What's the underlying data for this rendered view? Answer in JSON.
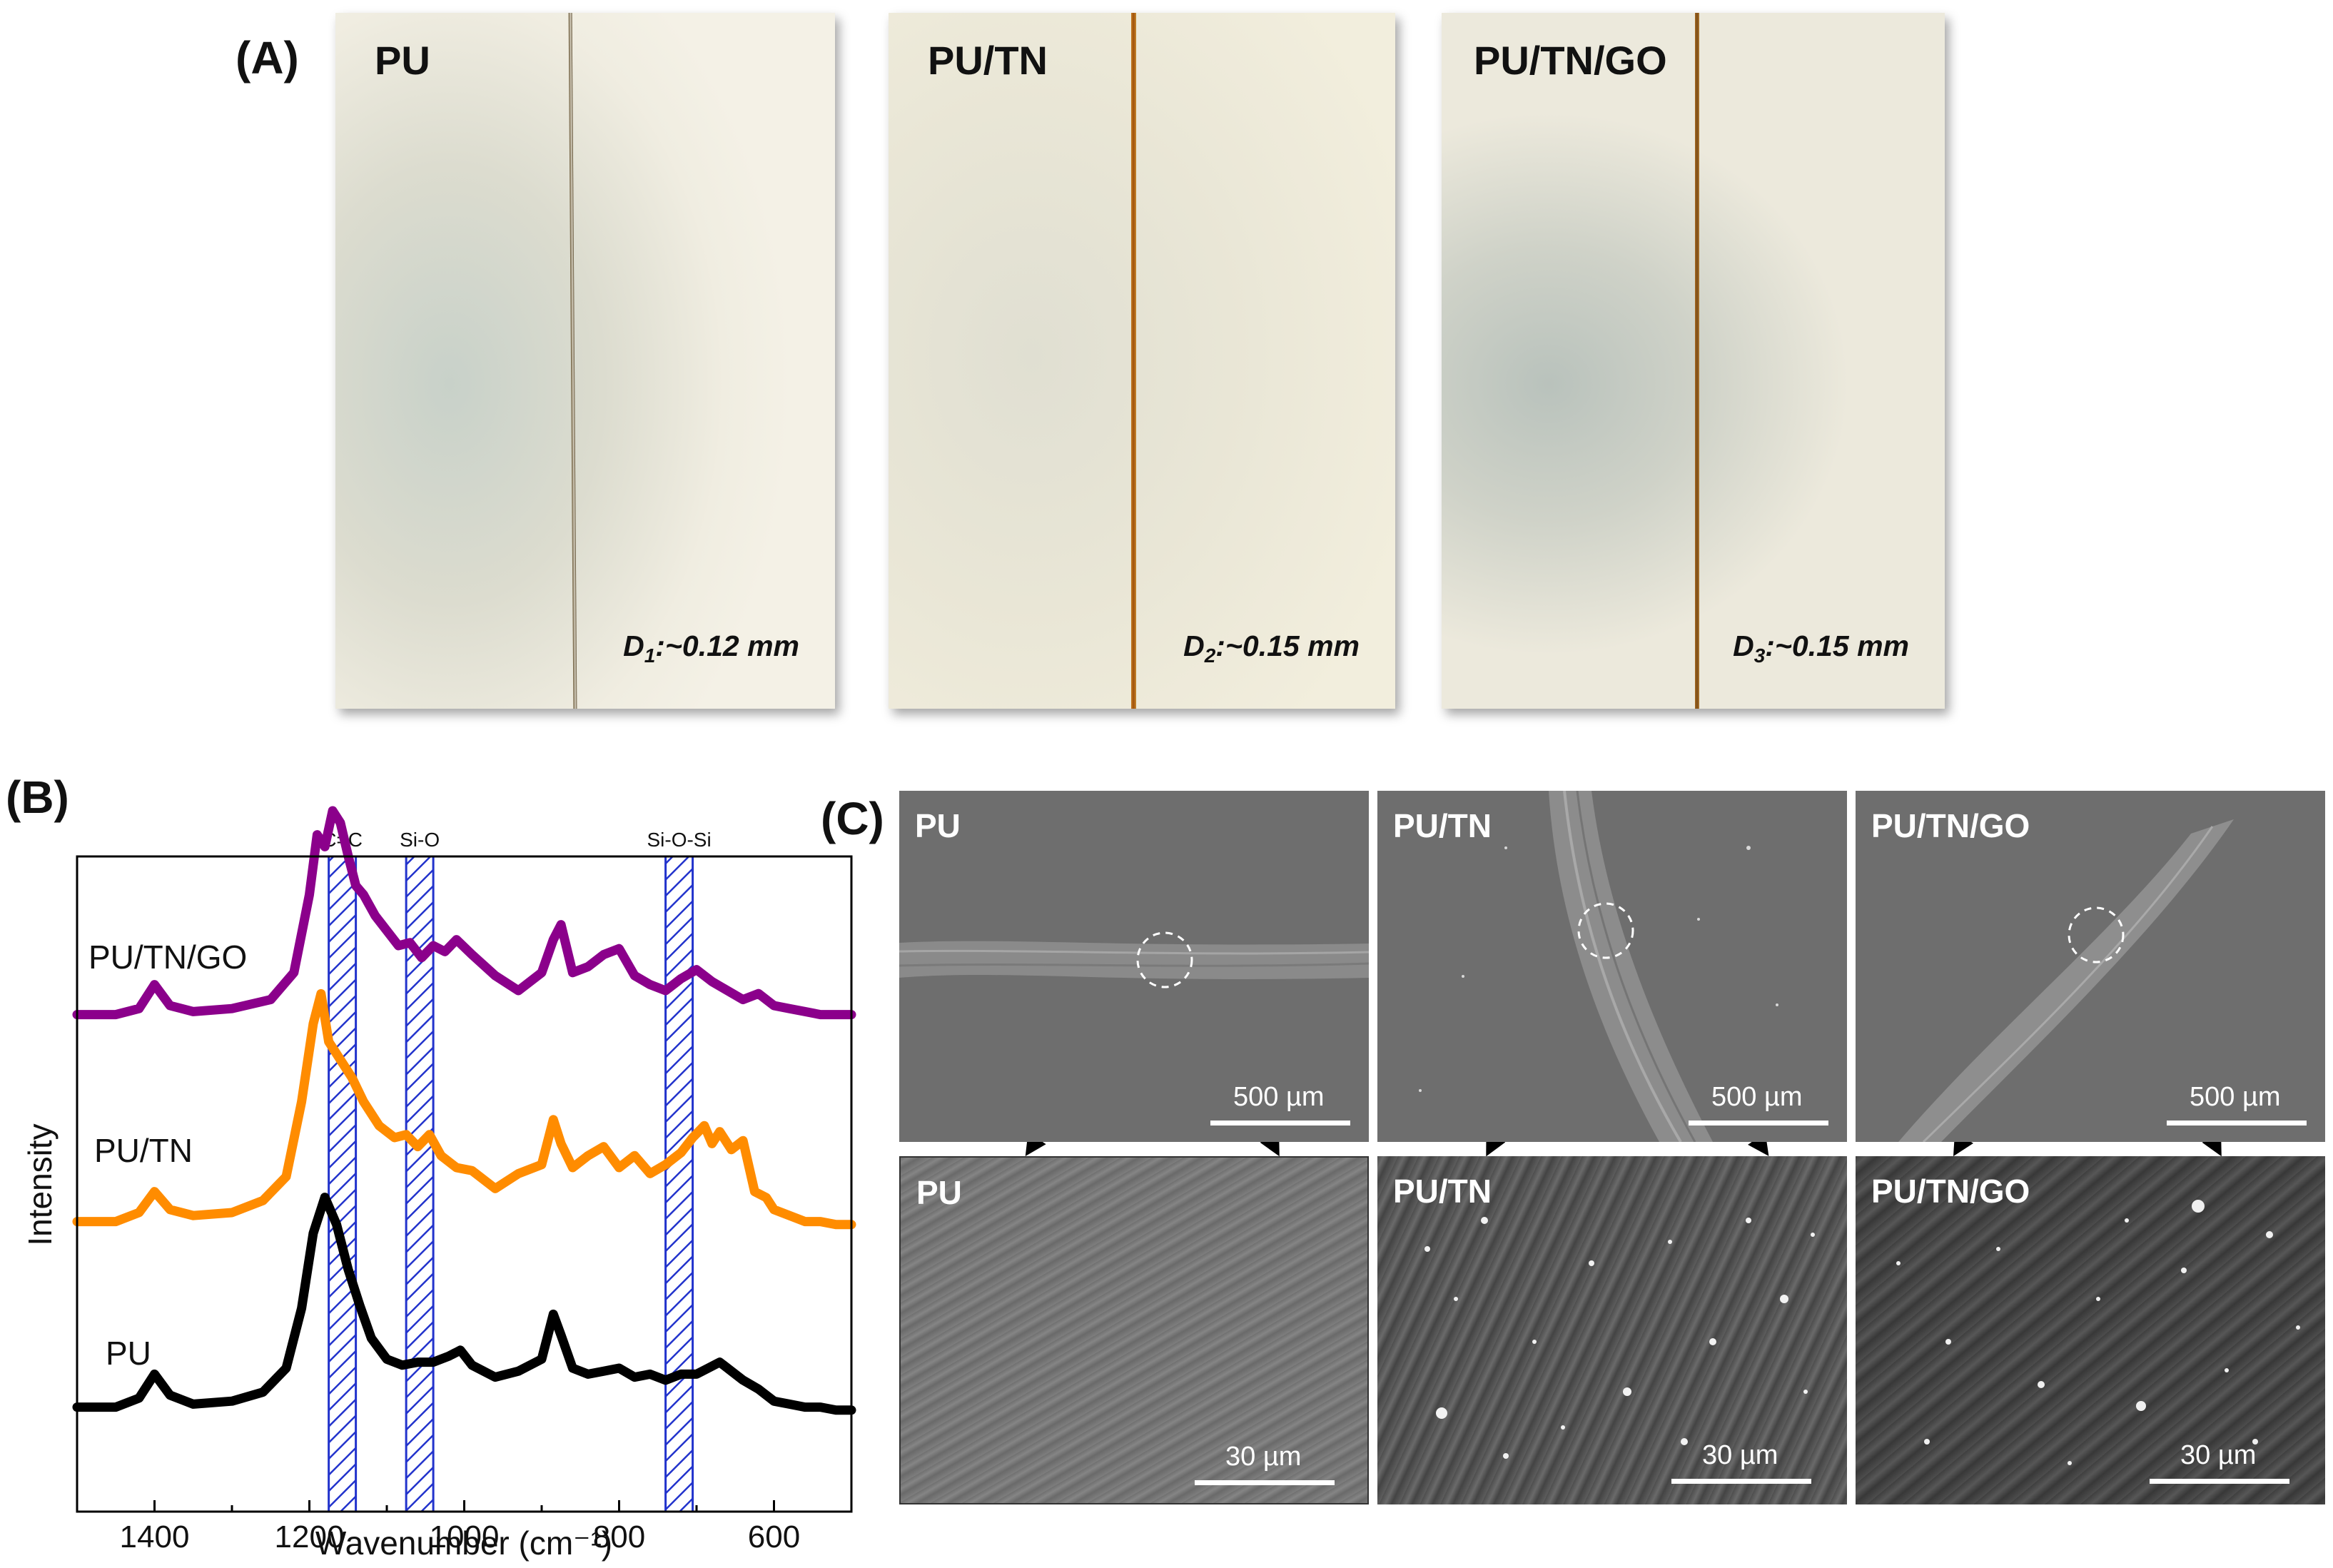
{
  "panel_labels": {
    "a": "(A)",
    "b": "(B)",
    "c": "(C)"
  },
  "photos": [
    {
      "title": "PU",
      "d_letter": "D",
      "d_sub": "1",
      "d_value": ":~0.12 mm"
    },
    {
      "title": "PU/TN",
      "d_letter": "D",
      "d_sub": "2",
      "d_value": ":~0.15 mm"
    },
    {
      "title": "PU/TN/GO",
      "d_letter": "D",
      "d_sub": "3",
      "d_value": ":~0.15 mm"
    }
  ],
  "sem": {
    "top": [
      {
        "title": "PU",
        "scale": "500 µm"
      },
      {
        "title": "PU/TN",
        "scale": "500 µm"
      },
      {
        "title": "PU/TN/GO",
        "scale": "500 µm"
      }
    ],
    "bottom": [
      {
        "title": "PU",
        "scale": "30 µm"
      },
      {
        "title": "PU/TN",
        "scale": "30 µm"
      },
      {
        "title": "PU/TN/GO",
        "scale": "30 µm"
      }
    ]
  },
  "chart_data": {
    "type": "line",
    "xlabel": "Wavenumber (cm⁻¹)",
    "ylabel": "Intensity",
    "xlim": [
      1500,
      500
    ],
    "xticks": [
      1400,
      1200,
      1000,
      800,
      600
    ],
    "bands": [
      {
        "label": "C=C",
        "range": [
          1175,
          1140
        ]
      },
      {
        "label": "Si-O",
        "range": [
          1075,
          1040
        ]
      },
      {
        "label": "Si-O-Si",
        "range": [
          740,
          705
        ]
      }
    ],
    "series": [
      {
        "name": "PU",
        "color": "#000000",
        "x": [
          1500,
          1450,
          1420,
          1400,
          1380,
          1350,
          1300,
          1260,
          1230,
          1210,
          1195,
          1180,
          1165,
          1150,
          1135,
          1120,
          1100,
          1080,
          1060,
          1040,
          1020,
          1005,
          990,
          960,
          930,
          900,
          885,
          875,
          860,
          840,
          820,
          800,
          780,
          760,
          740,
          720,
          700,
          685,
          670,
          655,
          640,
          620,
          600,
          580,
          560,
          540,
          520,
          500
        ],
        "y": [
          0.02,
          0.02,
          0.05,
          0.13,
          0.06,
          0.03,
          0.04,
          0.07,
          0.15,
          0.35,
          0.6,
          0.72,
          0.63,
          0.48,
          0.36,
          0.25,
          0.18,
          0.16,
          0.17,
          0.17,
          0.19,
          0.21,
          0.16,
          0.12,
          0.14,
          0.18,
          0.33,
          0.26,
          0.15,
          0.13,
          0.14,
          0.15,
          0.12,
          0.13,
          0.11,
          0.13,
          0.13,
          0.15,
          0.17,
          0.14,
          0.11,
          0.08,
          0.04,
          0.03,
          0.02,
          0.02,
          0.01,
          0.01
        ]
      },
      {
        "name": "PU/TN",
        "color": "#ff8c00",
        "x": [
          1500,
          1450,
          1420,
          1400,
          1380,
          1350,
          1300,
          1260,
          1230,
          1210,
          1195,
          1185,
          1175,
          1160,
          1145,
          1130,
          1110,
          1090,
          1075,
          1060,
          1045,
          1030,
          1010,
          990,
          960,
          930,
          900,
          885,
          875,
          860,
          840,
          820,
          800,
          780,
          760,
          740,
          720,
          705,
          690,
          680,
          670,
          655,
          640,
          625,
          610,
          600,
          580,
          560,
          540,
          520,
          500
        ],
        "y": [
          0.02,
          0.02,
          0.05,
          0.12,
          0.06,
          0.04,
          0.05,
          0.09,
          0.17,
          0.42,
          0.68,
          0.78,
          0.62,
          0.56,
          0.5,
          0.42,
          0.34,
          0.3,
          0.31,
          0.27,
          0.31,
          0.24,
          0.2,
          0.19,
          0.13,
          0.18,
          0.21,
          0.36,
          0.28,
          0.2,
          0.24,
          0.27,
          0.2,
          0.24,
          0.18,
          0.21,
          0.25,
          0.3,
          0.34,
          0.28,
          0.32,
          0.26,
          0.29,
          0.12,
          0.1,
          0.06,
          0.04,
          0.02,
          0.02,
          0.01,
          0.01
        ]
      },
      {
        "name": "PU/TN/GO",
        "color": "#8b008b",
        "x": [
          1500,
          1450,
          1420,
          1400,
          1380,
          1350,
          1300,
          1250,
          1220,
          1200,
          1190,
          1180,
          1170,
          1160,
          1150,
          1140,
          1130,
          1115,
          1100,
          1085,
          1070,
          1055,
          1040,
          1025,
          1010,
          990,
          960,
          930,
          900,
          885,
          875,
          860,
          840,
          820,
          800,
          780,
          760,
          740,
          720,
          700,
          680,
          660,
          640,
          620,
          600,
          580,
          560,
          540,
          520,
          500
        ],
        "y": [
          0.02,
          0.02,
          0.04,
          0.12,
          0.05,
          0.03,
          0.04,
          0.07,
          0.16,
          0.42,
          0.62,
          0.58,
          0.7,
          0.66,
          0.55,
          0.45,
          0.42,
          0.35,
          0.3,
          0.25,
          0.26,
          0.21,
          0.25,
          0.23,
          0.27,
          0.22,
          0.15,
          0.1,
          0.16,
          0.27,
          0.32,
          0.16,
          0.18,
          0.22,
          0.24,
          0.15,
          0.12,
          0.1,
          0.14,
          0.17,
          0.13,
          0.1,
          0.07,
          0.09,
          0.05,
          0.04,
          0.03,
          0.02,
          0.02,
          0.02
        ]
      }
    ]
  }
}
